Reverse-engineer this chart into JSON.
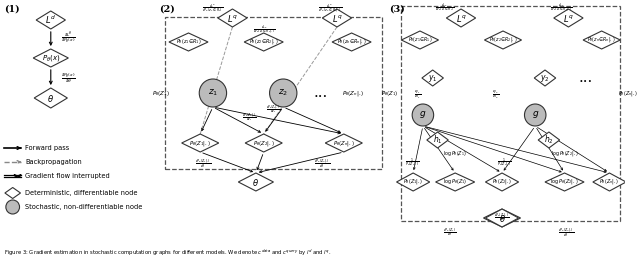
{
  "title": "",
  "bg_color": "#ffffff",
  "fig_caption": "Figure 3: Gradient estimation in stochastic computation graphs for different models.",
  "section_labels": [
    "(1)",
    "(2)",
    "(3)"
  ],
  "node_color_det": "#ffffff",
  "node_color_stoch": "#bbbbbb",
  "node_stroke": "#333333",
  "legend_forward": "Forward pass",
  "legend_back": "Backpropagation",
  "legend_grad": "Gradient flow interrupted",
  "legend_det": "Deterministic, differentiable node",
  "legend_stoch": "Stochastic, non-differentiable node"
}
